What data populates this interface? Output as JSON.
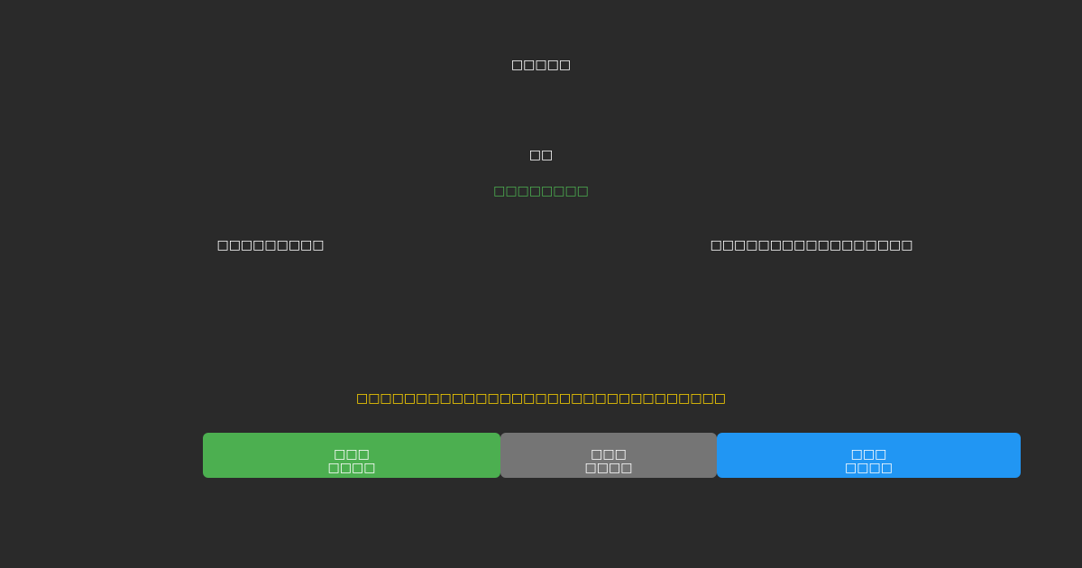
{
  "title": "□□□□□",
  "count": "□□",
  "status": "□□□□□□□□",
  "left_label": "□□□□□□□□□",
  "right_label": "□□□□□□□□□□□□□□□□□",
  "notice": "□□□□□□□□□□□□□□□□□□□□□□□□□□□□□□□",
  "buttons": [
    {
      "line1": "□□□",
      "line2": "□□□□",
      "color": "#4caf50"
    },
    {
      "line1": "□□□",
      "line2": "□□□□",
      "color": "#757575"
    },
    {
      "line1": "□□□",
      "line2": "□□□□",
      "color": "#2196f3"
    }
  ],
  "colors": {
    "background": "#2a2a2a",
    "status": "#4caf50",
    "notice": "#ffd600"
  }
}
